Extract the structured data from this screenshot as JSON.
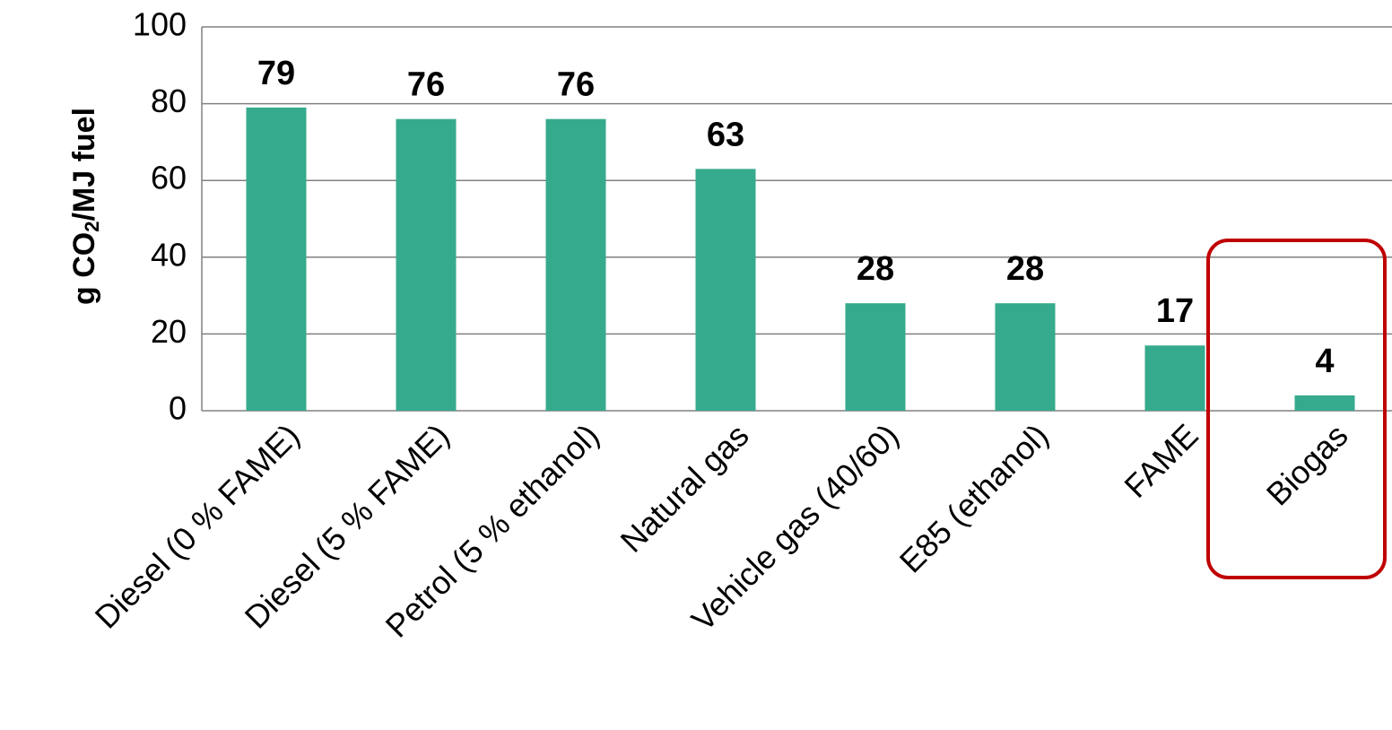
{
  "colors": {
    "bar": "#36AA8C",
    "grid": "#808080",
    "highlight": "#C00000"
  },
  "chart_data": {
    "type": "bar",
    "categories": [
      "Diesel (0 % FAME)",
      "Diesel (5 % FAME)",
      "Petrol (5 % ethanol)",
      "Natural gas",
      "Vehicle gas (40/60)",
      "E85 (ethanol)",
      "FAME",
      "Biogas"
    ],
    "values": [
      79,
      76,
      76,
      63,
      28,
      28,
      17,
      4
    ],
    "data_labels": [
      "79",
      "76",
      "76",
      "63",
      "28",
      "28",
      "17",
      "4"
    ],
    "ylabel_prefix": "g CO",
    "ylabel_sub": "2",
    "ylabel_suffix": "/MJ fuel",
    "ylim": [
      0,
      100
    ],
    "yticks": [
      0,
      20,
      40,
      60,
      80,
      100
    ],
    "ytick_labels": [
      "0",
      "20",
      "40",
      "60",
      "80",
      "100"
    ],
    "grid": true,
    "highlighted_category": "Biogas"
  }
}
